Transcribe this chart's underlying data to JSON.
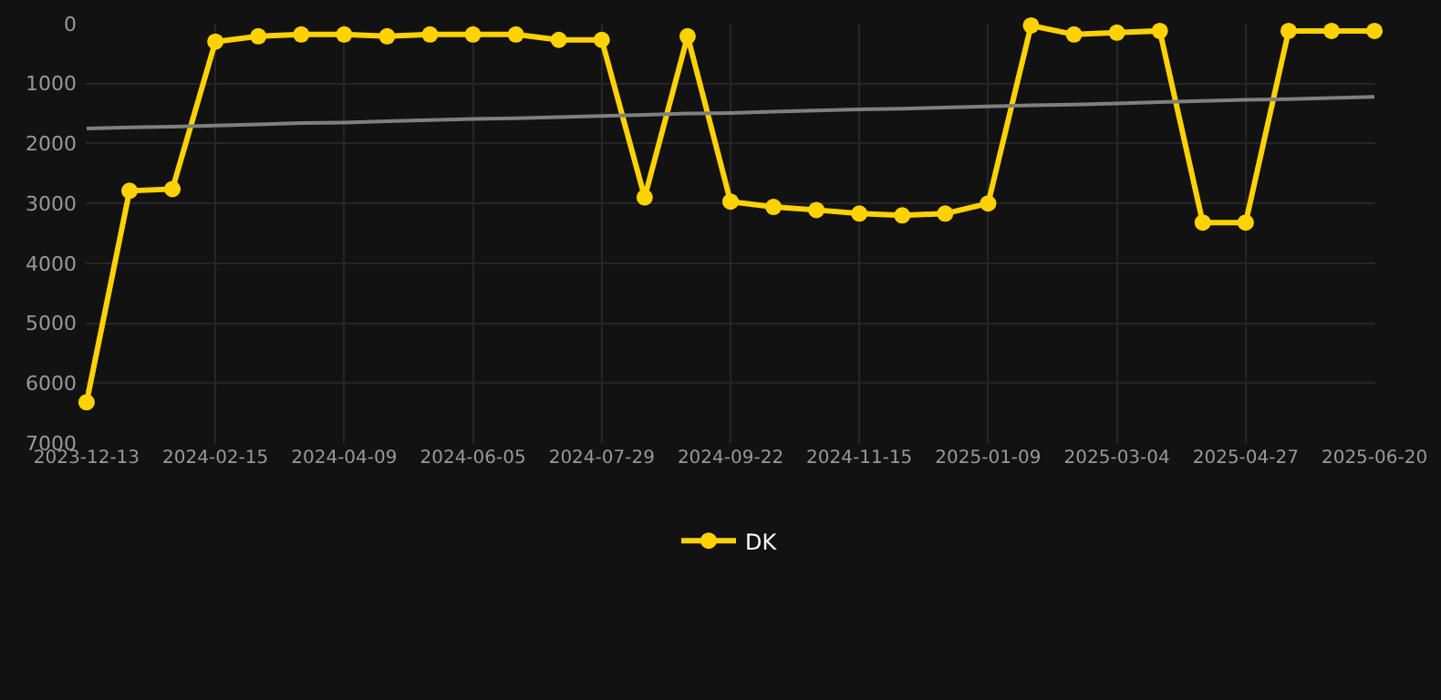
{
  "chart_data": {
    "type": "line",
    "categories": [
      "2023-12-13",
      null,
      null,
      "2024-02-15",
      null,
      null,
      "2024-04-09",
      null,
      null,
      "2024-06-05",
      null,
      null,
      "2024-07-29",
      null,
      null,
      "2024-09-22",
      null,
      null,
      "2024-11-15",
      null,
      null,
      "2025-01-09",
      null,
      null,
      "2025-03-04",
      null,
      null,
      "2025-04-27",
      null,
      null,
      "2025-06-20"
    ],
    "series": [
      {
        "name": "DK",
        "color": "#ffd200",
        "marker": "circle",
        "values": [
          6320,
          2790,
          2760,
          300,
          210,
          180,
          180,
          210,
          180,
          180,
          180,
          270,
          270,
          2900,
          210,
          2970,
          3060,
          3110,
          3170,
          3200,
          3170,
          3000,
          30,
          180,
          150,
          120,
          3320,
          3320,
          120,
          120,
          120
        ]
      },
      {
        "color": "#808080",
        "marker": "none",
        "values": [
          1750,
          1730,
          1720,
          1700,
          1680,
          1660,
          1650,
          1630,
          1610,
          1590,
          1580,
          1560,
          1540,
          1520,
          1500,
          1490,
          1470,
          1450,
          1430,
          1420,
          1400,
          1380,
          1360,
          1350,
          1330,
          1310,
          1290,
          1270,
          1260,
          1240,
          1220
        ]
      }
    ],
    "ylim": [
      7000,
      0
    ],
    "yticks": [
      0,
      1000,
      2000,
      3000,
      4000,
      5000,
      6000,
      7000
    ],
    "grid": true,
    "legend": "bottom"
  }
}
